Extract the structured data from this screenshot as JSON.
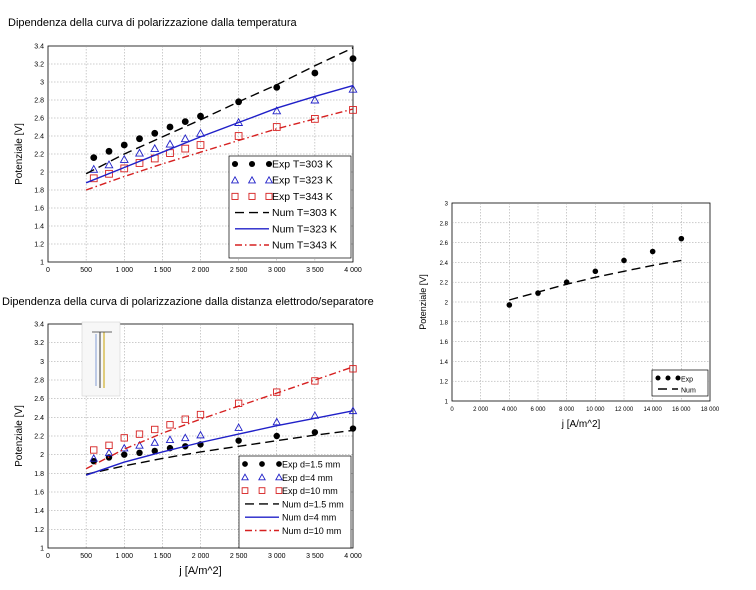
{
  "colors": {
    "black": "#000000",
    "blue": "#2020c8",
    "red": "#d62020",
    "grid": "#999999"
  },
  "chart_data": [
    {
      "type": "line",
      "title": "Dipendenza della curva di polarizzazione dalla temperatura",
      "xlabel": "",
      "ylabel": "Potenziale [V]",
      "xlim": [
        0,
        4000
      ],
      "ylim": [
        1,
        3.4
      ],
      "xticks": [
        "0",
        "500",
        "1 000",
        "1 500",
        "2 000",
        "2 500",
        "3 000",
        "3 500",
        "4 000"
      ],
      "yticks": [
        "1",
        "1.2",
        "1.4",
        "1.6",
        "1.8",
        "2",
        "2.2",
        "2.4",
        "2.6",
        "2.8",
        "3",
        "3.2",
        "3.4"
      ],
      "grid": true,
      "legend_position": "bottom-right",
      "series": [
        {
          "name": "Exp T=303 K",
          "kind": "marker",
          "marker": "circle-filled",
          "color": "#000000",
          "x": [
            600,
            800,
            1000,
            1200,
            1400,
            1600,
            1800,
            2000,
            2500,
            3000,
            3500,
            4000
          ],
          "y": [
            2.16,
            2.23,
            2.3,
            2.37,
            2.43,
            2.5,
            2.56,
            2.62,
            2.78,
            2.94,
            3.1,
            3.26
          ]
        },
        {
          "name": "Exp T=323 K",
          "kind": "marker",
          "marker": "triangle-open",
          "color": "#2020c8",
          "x": [
            600,
            800,
            1000,
            1200,
            1400,
            1600,
            1800,
            2000,
            2500,
            3000,
            3500,
            4000
          ],
          "y": [
            2.03,
            2.08,
            2.14,
            2.21,
            2.26,
            2.31,
            2.37,
            2.43,
            2.55,
            2.68,
            2.8,
            2.92
          ]
        },
        {
          "name": "Exp T=343 K",
          "kind": "marker",
          "marker": "square-open",
          "color": "#d62020",
          "x": [
            600,
            800,
            1000,
            1200,
            1400,
            1600,
            1800,
            2000,
            2500,
            3000,
            3500,
            4000
          ],
          "y": [
            1.93,
            1.98,
            2.04,
            2.1,
            2.15,
            2.21,
            2.26,
            2.3,
            2.4,
            2.5,
            2.59,
            2.69
          ]
        },
        {
          "name": "Num T=303 K",
          "kind": "line",
          "dash": "dash",
          "color": "#000000",
          "x": [
            500,
            1000,
            1500,
            2000,
            2500,
            3000,
            3500,
            4000
          ],
          "y": [
            1.98,
            2.2,
            2.39,
            2.58,
            2.78,
            2.97,
            3.18,
            3.38
          ]
        },
        {
          "name": "Num T=323 K",
          "kind": "line",
          "dash": "solid",
          "color": "#2020c8",
          "x": [
            500,
            1000,
            1500,
            2000,
            2500,
            3000,
            3500,
            4000
          ],
          "y": [
            1.88,
            2.05,
            2.22,
            2.39,
            2.55,
            2.71,
            2.84,
            2.96
          ]
        },
        {
          "name": "Num T=343 K",
          "kind": "line",
          "dash": "dashdot",
          "color": "#d62020",
          "x": [
            500,
            1000,
            1500,
            2000,
            2500,
            3000,
            3500,
            4000
          ],
          "y": [
            1.8,
            1.95,
            2.09,
            2.22,
            2.35,
            2.48,
            2.59,
            2.7
          ]
        }
      ]
    },
    {
      "type": "line",
      "title": "Dipendenza della curva di polarizzazione dalla distanza elettrodo/separatore",
      "xlabel": "j [A/m^2]",
      "ylabel": "Potenziale [V]",
      "xlim": [
        0,
        4000
      ],
      "ylim": [
        1,
        3.4
      ],
      "xticks": [
        "0",
        "500",
        "1 000",
        "1 500",
        "2 000",
        "2 500",
        "3 000",
        "3 500",
        "4 000"
      ],
      "yticks": [
        "1",
        "1.2",
        "1.4",
        "1.6",
        "1.8",
        "2",
        "2.2",
        "2.4",
        "2.6",
        "2.8",
        "3",
        "3.2",
        "3.4"
      ],
      "grid": true,
      "legend_position": "bottom-right",
      "series": [
        {
          "name": "Exp d=1.5 mm",
          "kind": "marker",
          "marker": "circle-filled",
          "color": "#000000",
          "x": [
            600,
            800,
            1000,
            1200,
            1400,
            1600,
            1800,
            2000,
            2500,
            3000,
            3500,
            4000
          ],
          "y": [
            1.93,
            1.97,
            2.0,
            2.02,
            2.04,
            2.07,
            2.09,
            2.11,
            2.15,
            2.2,
            2.24,
            2.28
          ]
        },
        {
          "name": "Exp d=4 mm",
          "kind": "marker",
          "marker": "triangle-open",
          "color": "#2020c8",
          "x": [
            600,
            800,
            1000,
            1200,
            1400,
            1600,
            1800,
            2000,
            2500,
            3000,
            3500,
            4000
          ],
          "y": [
            1.96,
            2.02,
            2.07,
            2.1,
            2.13,
            2.16,
            2.18,
            2.21,
            2.29,
            2.35,
            2.42,
            2.47
          ]
        },
        {
          "name": "Exp d=10 mm",
          "kind": "marker",
          "marker": "square-open",
          "color": "#d62020",
          "x": [
            600,
            800,
            1000,
            1200,
            1400,
            1600,
            1800,
            2000,
            2500,
            3000,
            3500,
            4000
          ],
          "y": [
            2.05,
            2.1,
            2.18,
            2.22,
            2.27,
            2.32,
            2.38,
            2.43,
            2.55,
            2.67,
            2.79,
            2.92
          ]
        },
        {
          "name": "Num d=1.5 mm",
          "kind": "line",
          "dash": "dash",
          "color": "#000000",
          "x": [
            500,
            1000,
            1500,
            2000,
            2500,
            3000,
            3500,
            4000
          ],
          "y": [
            1.79,
            1.88,
            1.96,
            2.03,
            2.09,
            2.15,
            2.21,
            2.26
          ]
        },
        {
          "name": "Num d=4 mm",
          "kind": "line",
          "dash": "solid",
          "color": "#2020c8",
          "x": [
            500,
            1000,
            1500,
            2000,
            2500,
            3000,
            3500,
            4000
          ],
          "y": [
            1.78,
            1.92,
            2.03,
            2.13,
            2.22,
            2.31,
            2.39,
            2.47
          ]
        },
        {
          "name": "Num d=10 mm",
          "kind": "line",
          "dash": "dashdot",
          "color": "#d62020",
          "x": [
            500,
            1000,
            1500,
            2000,
            2500,
            3000,
            3500,
            4000
          ],
          "y": [
            1.85,
            2.06,
            2.23,
            2.38,
            2.52,
            2.66,
            2.8,
            2.94
          ]
        }
      ]
    },
    {
      "type": "line",
      "title": "",
      "xlabel": "j [A/m^2]",
      "ylabel": "Potenziale [V]",
      "xlim": [
        0,
        18000
      ],
      "ylim": [
        1,
        3
      ],
      "xticks": [
        "0",
        "2 000",
        "4 000",
        "6 000",
        "8 000",
        "10 000",
        "12 000",
        "14 000",
        "16 000",
        "18 000"
      ],
      "yticks": [
        "1",
        "1.2",
        "1.4",
        "1.6",
        "1.8",
        "2",
        "2.2",
        "2.4",
        "2.6",
        "2.8",
        "3"
      ],
      "grid": true,
      "legend_position": "bottom-right",
      "series": [
        {
          "name": "Exp",
          "kind": "marker",
          "marker": "circle-filled",
          "color": "#000000",
          "x": [
            4000,
            6000,
            8000,
            10000,
            12000,
            14000,
            16000
          ],
          "y": [
            1.97,
            2.09,
            2.2,
            2.31,
            2.42,
            2.51,
            2.64
          ]
        },
        {
          "name": "Num",
          "kind": "line",
          "dash": "dash",
          "color": "#000000",
          "x": [
            4000,
            6000,
            8000,
            10000,
            12000,
            14000,
            16000
          ],
          "y": [
            2.02,
            2.1,
            2.18,
            2.25,
            2.31,
            2.37,
            2.42
          ]
        }
      ]
    }
  ]
}
